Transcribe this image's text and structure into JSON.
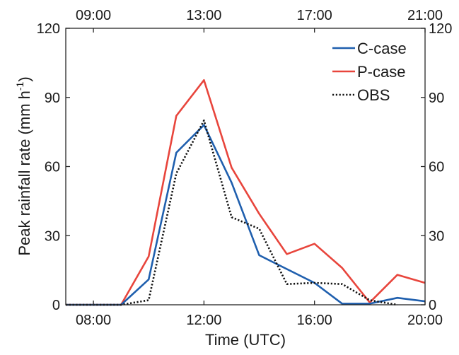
{
  "chart_data": {
    "type": "line",
    "xlabel": "Time (UTC)",
    "ylabel": "Peak rainfall rate (mm h",
    "ylabel_sup": "-1",
    "ylabel_end": ")",
    "xlim": [
      "07:00",
      "20:00"
    ],
    "ylim": [
      0,
      120
    ],
    "yticks": [
      0,
      30,
      60,
      90,
      120
    ],
    "xticks_bottom": [
      "08:00",
      "12:00",
      "16:00",
      "20:00"
    ],
    "xticks_top": [
      "09:00",
      "13:00",
      "17:00",
      "21:00"
    ],
    "legend_position": "top-right",
    "grid": false,
    "x": [
      "07:00",
      "08:00",
      "09:00",
      "10:00",
      "11:00",
      "12:00",
      "13:00",
      "14:00",
      "15:00",
      "16:00",
      "17:00",
      "18:00",
      "19:00",
      "20:00"
    ],
    "series": [
      {
        "name": "C-case",
        "color": "#1f5fae",
        "style": "solid",
        "values": [
          0,
          0,
          0,
          11,
          66,
          78,
          53,
          21.5,
          15.5,
          9.5,
          0.5,
          0.5,
          3,
          1.5
        ]
      },
      {
        "name": "P-case",
        "color": "#e8453c",
        "style": "solid",
        "values": [
          0,
          0,
          0,
          21,
          82,
          97.5,
          59.5,
          39.5,
          22,
          26.5,
          16,
          1,
          13,
          9.5
        ]
      },
      {
        "name": "OBS",
        "color": "#111111",
        "style": "dotted",
        "values": [
          0,
          0,
          0,
          2,
          57,
          80,
          38,
          33,
          9,
          9.5,
          9,
          2,
          0,
          null
        ]
      }
    ]
  }
}
